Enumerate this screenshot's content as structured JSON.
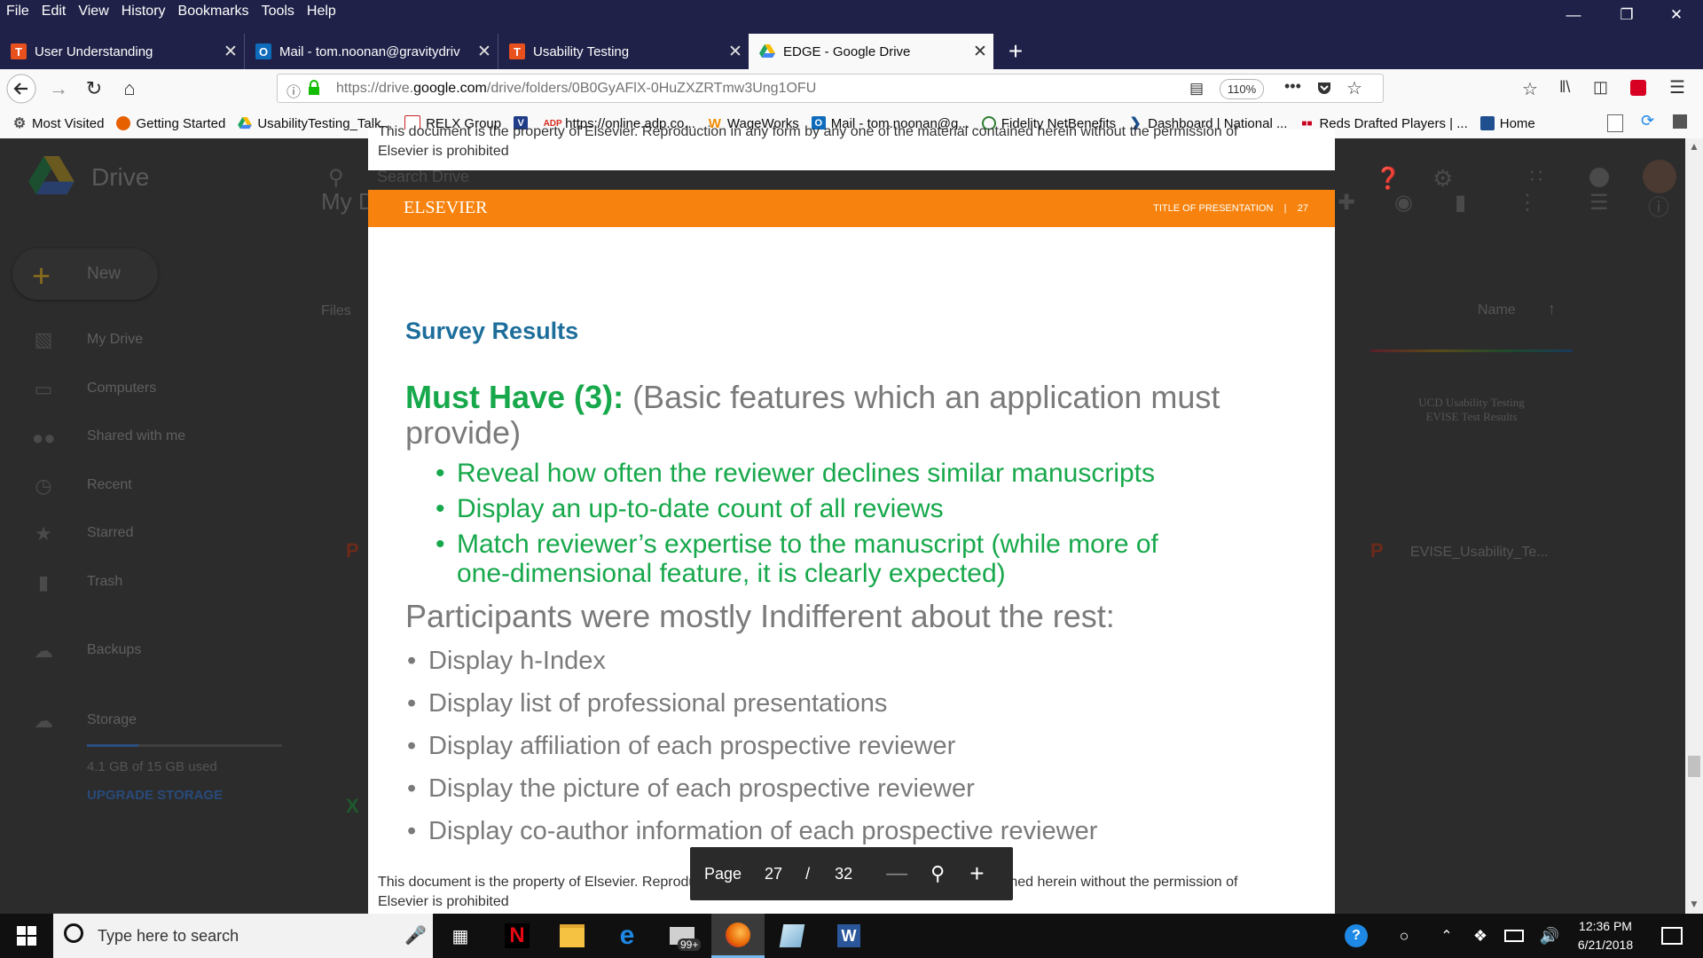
{
  "menubar": [
    "File",
    "Edit",
    "View",
    "History",
    "Bookmarks",
    "Tools",
    "Help"
  ],
  "tabs": [
    {
      "title": "User Understanding",
      "icon": "T",
      "color": "#e8501e"
    },
    {
      "title": "Mail - tom.noonan@gravitydriv",
      "icon": "O",
      "color": "#0f6cbd"
    },
    {
      "title": "Usability Testing",
      "icon": "T",
      "color": "#e8501e"
    },
    {
      "title": "EDGE - Google Drive",
      "icon": "drive",
      "color": "#1fa463"
    }
  ],
  "urlbar": {
    "prefix": "https://drive.",
    "domain": "google.com",
    "path": "/drive/folders/0B0GyAFlX-0HuZXZRTmw3Ung1OFU",
    "zoom": "110%"
  },
  "bookmarks": [
    {
      "label": "Most Visited",
      "icon": "gear-icon",
      "color": "#555555"
    },
    {
      "label": "Getting Started",
      "icon": "firefox-icon",
      "color": "#e66000"
    },
    {
      "label": "UsabilityTesting_Talk...",
      "icon": "drive-icon",
      "color": "#1fa463"
    },
    {
      "label": "RELX Group",
      "icon": "relx-icon",
      "color": "#cc2222"
    },
    {
      "label": "",
      "icon": "vt-icon",
      "color": "#1f3c88"
    },
    {
      "label": "https://online.adp.co...",
      "icon": "adp-icon",
      "color": "#d52b1e"
    },
    {
      "label": "WageWorks",
      "icon": "wageworks-icon",
      "color": "#f28c00"
    },
    {
      "label": "Mail - tom.noonan@g...",
      "icon": "outlook-icon",
      "color": "#0f6cbd"
    },
    {
      "label": "Fidelity NetBenefits",
      "icon": "fidelity-icon",
      "color": "#2e7d32"
    },
    {
      "label": "Dashboard | National ...",
      "icon": "dashboard-icon",
      "color": "#1a4e8a"
    },
    {
      "label": "Reds Drafted Players | ...",
      "icon": "reds-icon",
      "color": "#c6011f"
    },
    {
      "label": "Home",
      "icon": "home-icon",
      "color": "#1f4f8f"
    }
  ],
  "drive": {
    "app_name": "Drive",
    "search_placeholder": "Search Drive",
    "crumb": "My D",
    "new_label": "New",
    "files_label": "Files",
    "name_col": "Name",
    "sidebar": [
      "My Drive",
      "Computers",
      "Shared with me",
      "Recent",
      "Starred",
      "Trash",
      "Backups",
      "Storage"
    ],
    "storage_used": "4.1 GB of 15 GB used",
    "upgrade": "UPGRADE STORAGE",
    "thumb_title": "UCD Usability Testing\nEVISE Test Results",
    "file_name": "EVISE_Usability_Te..."
  },
  "slide": {
    "brand": "ELSEVIER",
    "banner_right": "TITLE OF PRESENTATION",
    "banner_sep": "|",
    "banner_page": "27",
    "title": "Survey Results",
    "must_have_label": "Must Have (3)",
    "must_have_colon": ":",
    "must_have_desc_1": " (Basic features which an application must",
    "must_have_desc_2": "provide)",
    "must_bullets": [
      "Reveal how often the  reviewer declines similar manuscripts",
      "Display an up-to-date count of all reviews",
      "Match reviewer’s expertise to the manuscript (while more of",
      "one-dimensional feature, it is clearly expected)"
    ],
    "indifferent": "Participants were mostly Indifferent about the rest:",
    "indifferent_bullets": [
      "Display h-Index",
      "Display list of professional presentations",
      "Display affiliation of each prospective reviewer",
      "Display the picture of each prospective reviewer",
      "Display co-author information of each prospective reviewer"
    ],
    "footer_top_1": "This document is the property of Elsevier. Reproduction in any form by any one of the material contained herein without the permission of",
    "footer_top_2": "Elsevier is prohibited",
    "footer_1": "This document is the property of Elsevier. Reproduction in any form by any one of the material contained herein without the permission of",
    "footer_2": "Elsevier is prohibited"
  },
  "pager": {
    "label": "Page",
    "current": "27",
    "sep": "/",
    "total": "32"
  },
  "taskbar": {
    "search_placeholder": "Type here to search",
    "mail_badge": "99+",
    "time": "12:36 PM",
    "date": "6/21/2018"
  }
}
